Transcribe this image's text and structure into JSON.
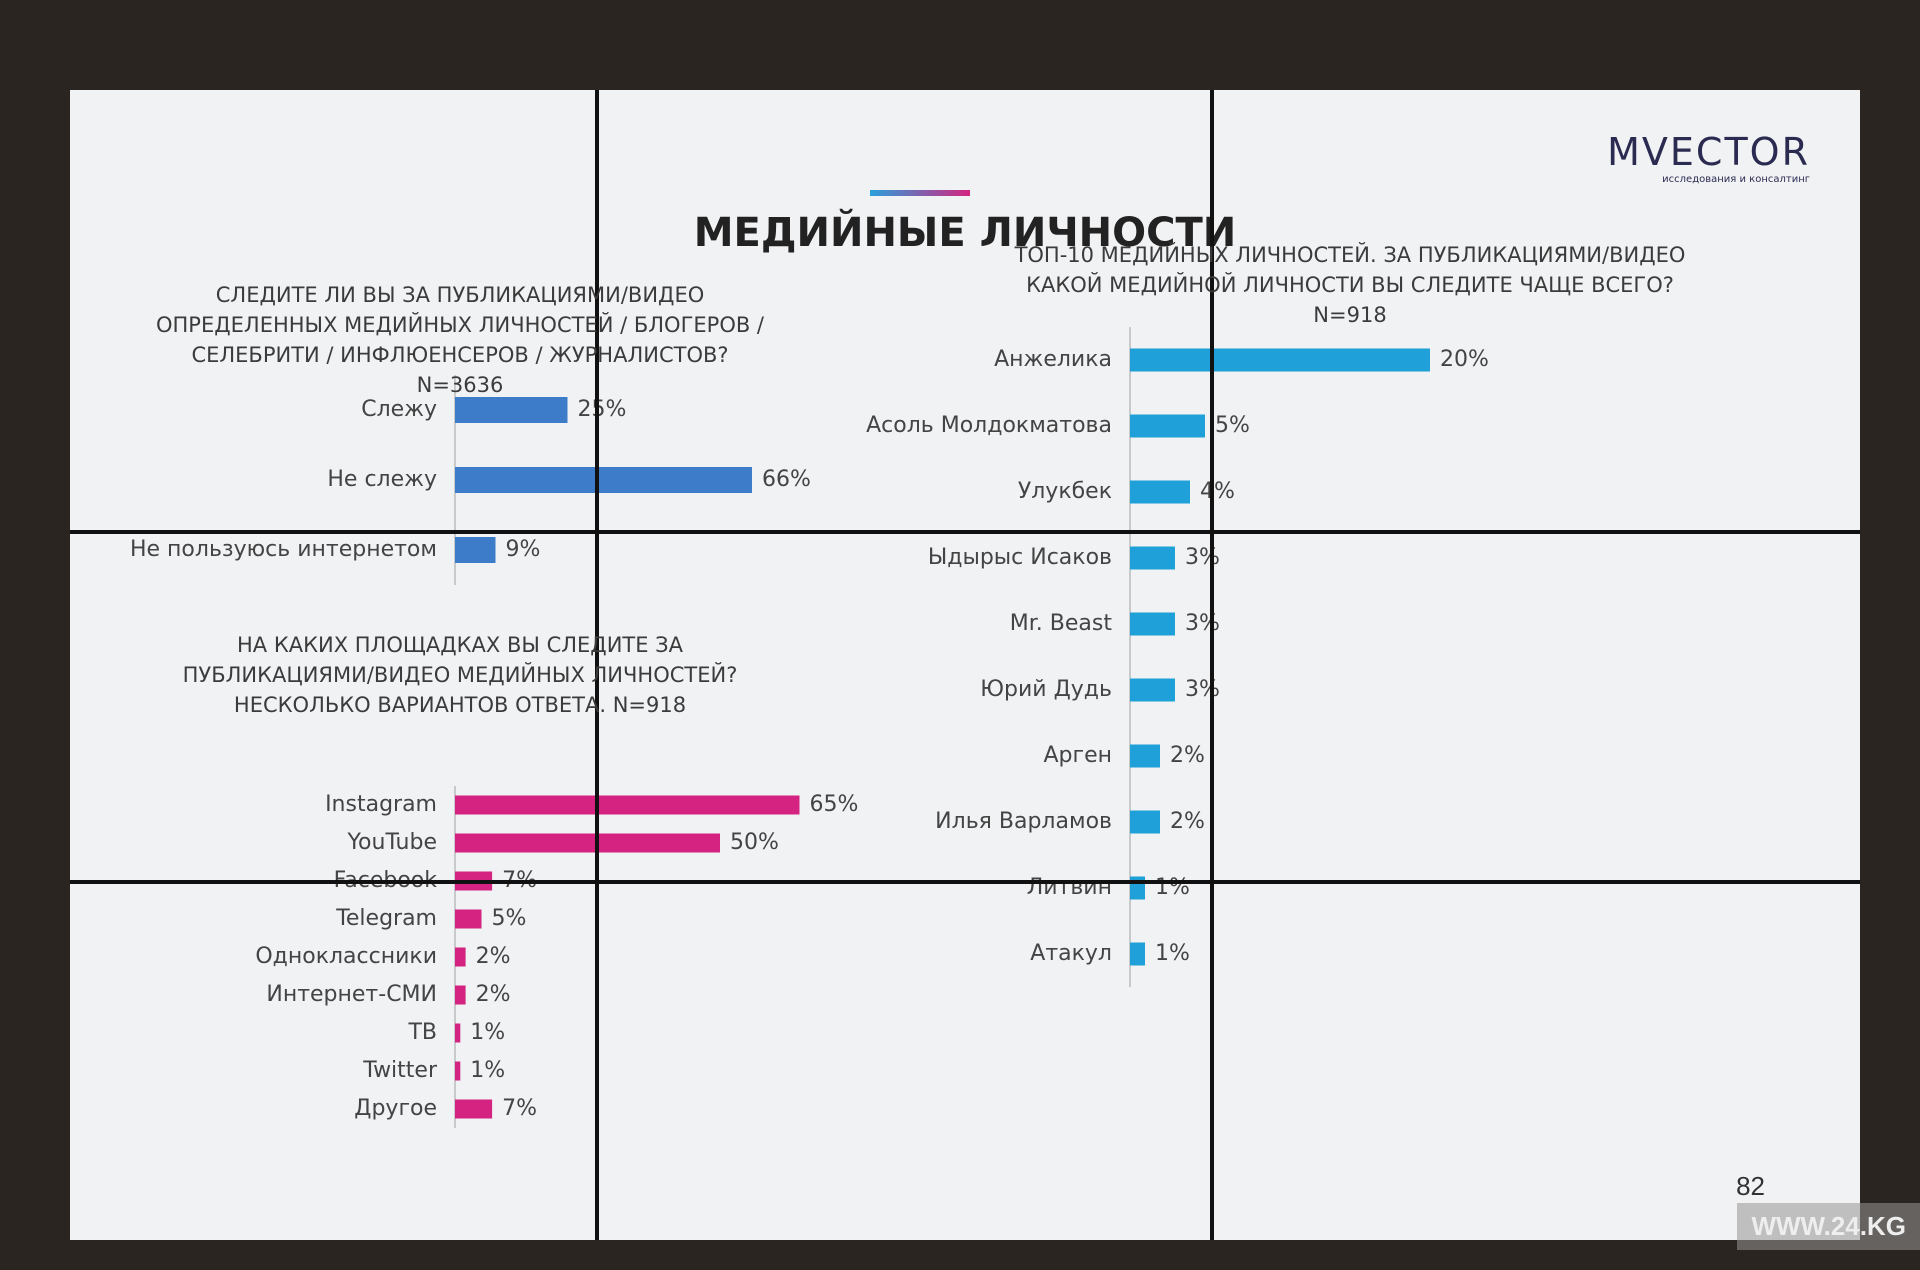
{
  "title": "МЕДИЙНЫЕ ЛИЧНОСТИ",
  "logo": {
    "name": "MVECTOR",
    "tagline": "исследования и консалтинг"
  },
  "page_number": "82",
  "watermark": "WWW.24.KG",
  "chart_data": [
    {
      "type": "bar",
      "orientation": "horizontal",
      "title": "СЛЕДИТЕ ЛИ ВЫ ЗА ПУБЛИКАЦИЯМИ/ВИДЕО ОПРЕДЕЛЕННЫХ МЕДИЙНЫХ ЛИЧНОСТЕЙ / БЛОГЕРОВ / СЕЛЕБРИТИ / ИНФЛЮЕНСЕРОВ / ЖУРНАЛИСТОВ? N=3636",
      "categories": [
        "Слежу",
        "Не слежу",
        "Не пользуюсь интернетом"
      ],
      "values": [
        25,
        66,
        9
      ],
      "value_labels": [
        "25%",
        "66%",
        "9%"
      ],
      "color": "#3d7cc9"
    },
    {
      "type": "bar",
      "orientation": "horizontal",
      "title": "НА КАКИХ ПЛОЩАДКАХ ВЫ СЛЕДИТЕ ЗА ПУБЛИКАЦИЯМИ/ВИДЕО МЕДИЙНЫХ ЛИЧНОСТЕЙ? НЕСКОЛЬКО ВАРИАНТОВ ОТВЕТА. N=918",
      "categories": [
        "Instagram",
        "YouTube",
        "Facebook",
        "Telegram",
        "Одноклассники",
        "Интернет-СМИ",
        "ТВ",
        "Twitter",
        "Другое"
      ],
      "values": [
        65,
        50,
        7,
        5,
        2,
        2,
        1,
        1,
        7
      ],
      "value_labels": [
        "65%",
        "50%",
        "7%",
        "5%",
        "2%",
        "2%",
        "1%",
        "1%",
        "7%"
      ],
      "color": "#d42380"
    },
    {
      "type": "bar",
      "orientation": "horizontal",
      "title": "ТОП-10 МЕДИЙНЫХ ЛИЧНОСТЕЙ. ЗА ПУБЛИКАЦИЯМИ/ВИДЕО КАКОЙ МЕДИЙНОЙ ЛИЧНОСТИ ВЫ СЛЕДИТЕ ЧАЩЕ ВСЕГО? N=918",
      "categories": [
        "Анжелика",
        "Асоль Молдокматова",
        "Улукбек",
        "Ыдырыс Исаков",
        "Mr. Beast",
        "Юрий Дудь",
        "Арген",
        "Илья Варламов",
        "Литвин",
        "Атакул"
      ],
      "values": [
        20,
        5,
        4,
        3,
        3,
        3,
        2,
        2,
        1,
        1
      ],
      "value_labels": [
        "20%",
        "5%",
        "4%",
        "3%",
        "3%",
        "3%",
        "2%",
        "2%",
        "1%",
        "1%"
      ],
      "color": "#1fa0d8"
    }
  ]
}
